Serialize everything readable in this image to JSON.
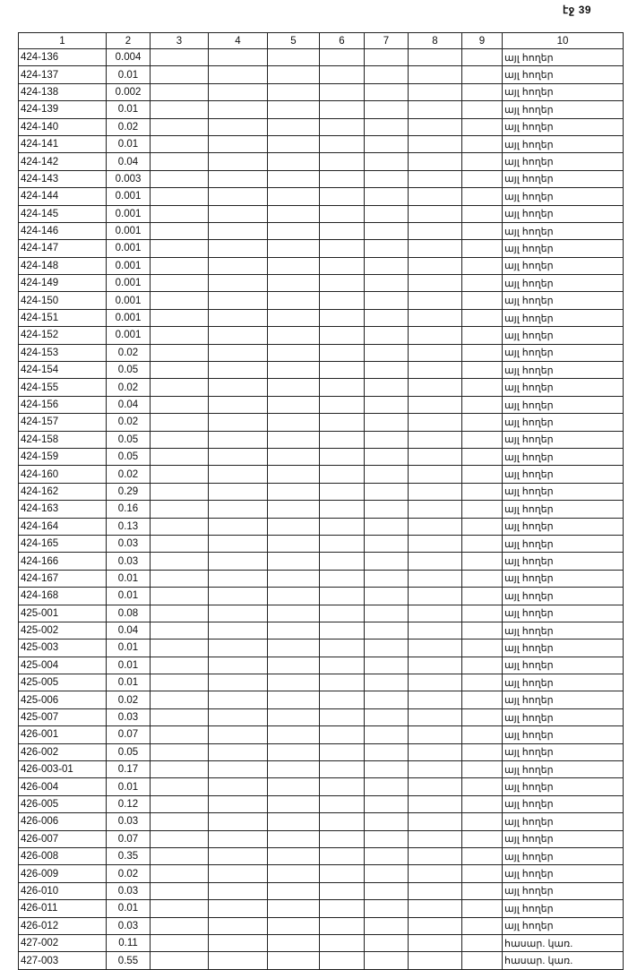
{
  "page_label": "էջ 39",
  "headers": [
    "1",
    "2",
    "3",
    "4",
    "5",
    "6",
    "7",
    "8",
    "9",
    "10"
  ],
  "rows": [
    [
      "424-136",
      "0.004",
      "այլ հողեր"
    ],
    [
      "424-137",
      "0.01",
      "այլ հողեր"
    ],
    [
      "424-138",
      "0.002",
      "այլ հողեր"
    ],
    [
      "424-139",
      "0.01",
      "այլ հողեր"
    ],
    [
      "424-140",
      "0.02",
      "այլ հողեր"
    ],
    [
      "424-141",
      "0.01",
      "այլ հողեր"
    ],
    [
      "424-142",
      "0.04",
      "այլ հողեր"
    ],
    [
      "424-143",
      "0.003",
      "այլ հողեր"
    ],
    [
      "424-144",
      "0.001",
      "այլ հողեր"
    ],
    [
      "424-145",
      "0.001",
      "այլ հողեր"
    ],
    [
      "424-146",
      "0.001",
      "այլ հողեր"
    ],
    [
      "424-147",
      "0.001",
      "այլ հողեր"
    ],
    [
      "424-148",
      "0.001",
      "այլ հողեր"
    ],
    [
      "424-149",
      "0.001",
      "այլ հողեր"
    ],
    [
      "424-150",
      "0.001",
      "այլ հողեր"
    ],
    [
      "424-151",
      "0.001",
      "այլ հողեր"
    ],
    [
      "424-152",
      "0.001",
      "այլ հողեր"
    ],
    [
      "424-153",
      "0.02",
      "այլ հողեր"
    ],
    [
      "424-154",
      "0.05",
      "այլ հողեր"
    ],
    [
      "424-155",
      "0.02",
      "այլ հողեր"
    ],
    [
      "424-156",
      "0.04",
      "այլ հողեր"
    ],
    [
      "424-157",
      "0.02",
      "այլ հողեր"
    ],
    [
      "424-158",
      "0.05",
      "այլ հողեր"
    ],
    [
      "424-159",
      "0.05",
      "այլ հողեր"
    ],
    [
      "424-160",
      "0.02",
      "այլ հողեր"
    ],
    [
      "424-162",
      "0.29",
      "այլ հողեր"
    ],
    [
      "424-163",
      "0.16",
      "այլ հողեր"
    ],
    [
      "424-164",
      "0.13",
      "այլ հողեր"
    ],
    [
      "424-165",
      "0.03",
      "այլ հողեր"
    ],
    [
      "424-166",
      "0.03",
      "այլ հողեր"
    ],
    [
      "424-167",
      "0.01",
      "այլ հողեր"
    ],
    [
      "424-168",
      "0.01",
      "այլ հողեր"
    ],
    [
      "425-001",
      "0.08",
      "այլ հողեր"
    ],
    [
      "425-002",
      "0.04",
      "այլ հողեր"
    ],
    [
      "425-003",
      "0.01",
      "այլ հողեր"
    ],
    [
      "425-004",
      "0.01",
      "այլ հողեր"
    ],
    [
      "425-005",
      "0.01",
      "այլ հողեր"
    ],
    [
      "425-006",
      "0.02",
      "այլ հողեր"
    ],
    [
      "425-007",
      "0.03",
      "այլ հողեր"
    ],
    [
      "426-001",
      "0.07",
      "այլ հողեր"
    ],
    [
      "426-002",
      "0.05",
      "այլ հողեր"
    ],
    [
      "426-003-01",
      "0.17",
      "այլ հողեր"
    ],
    [
      "426-004",
      "0.01",
      "այլ հողեր"
    ],
    [
      "426-005",
      "0.12",
      "այլ հողեր"
    ],
    [
      "426-006",
      "0.03",
      "այլ հողեր"
    ],
    [
      "426-007",
      "0.07",
      "այլ հողեր"
    ],
    [
      "426-008",
      "0.35",
      "այլ հողեր"
    ],
    [
      "426-009",
      "0.02",
      "այլ հողեր"
    ],
    [
      "426-010",
      "0.03",
      "այլ հողեր"
    ],
    [
      "426-011",
      "0.01",
      "այլ հողեր"
    ],
    [
      "426-012",
      "0.03",
      "այլ հողեր"
    ],
    [
      "427-002",
      "0.11",
      "հասար. կառ."
    ],
    [
      "427-003",
      "0.55",
      "հասար. կառ."
    ]
  ]
}
